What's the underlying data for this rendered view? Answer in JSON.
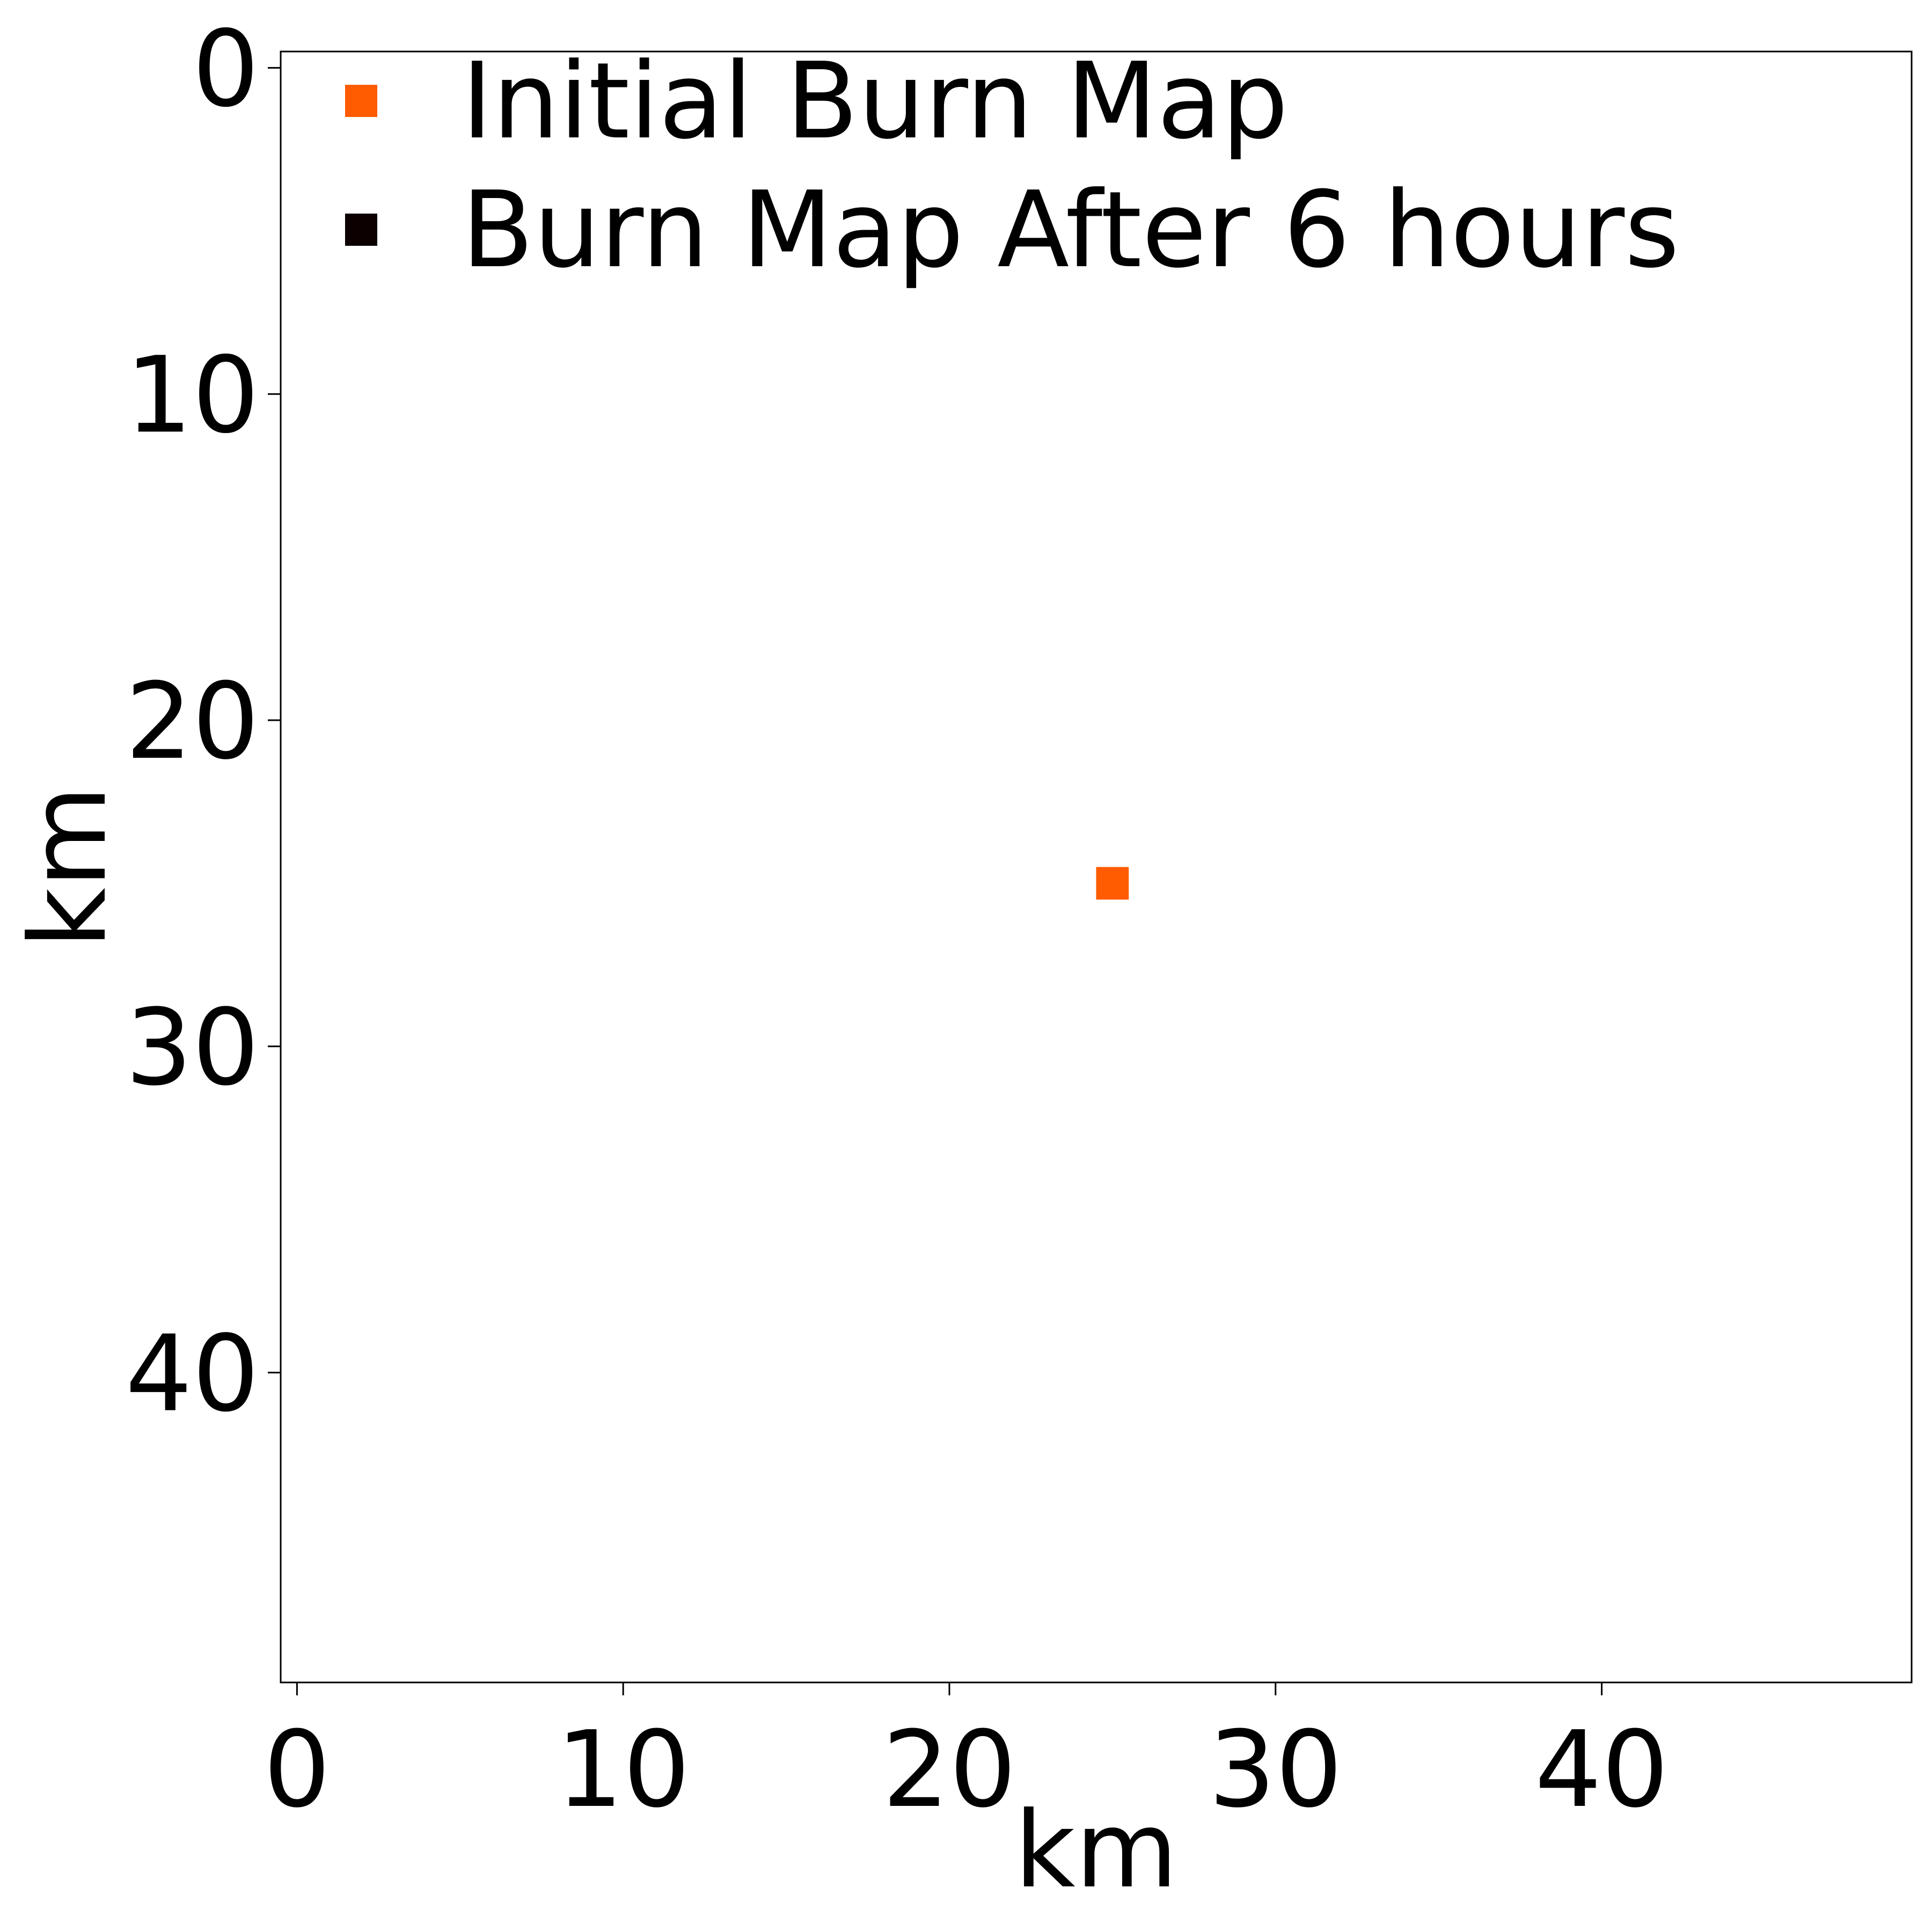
{
  "chart_data": {
    "type": "heatmap",
    "title": "",
    "xlabel": "km",
    "ylabel": "km",
    "xlim": [
      -0.5,
      49.5
    ],
    "ylim": [
      49.5,
      -0.5
    ],
    "y_inverted": true,
    "grid": false,
    "x_ticks": [
      0,
      10,
      20,
      30,
      40
    ],
    "y_ticks": [
      0,
      10,
      20,
      30,
      40
    ],
    "legend": {
      "placement": "top-left",
      "entries": [
        {
          "label": "Initial Burn Map",
          "color": "#ff5b00"
        },
        {
          "label": "Burn Map After 6 hours",
          "color": "#0c0000"
        }
      ]
    },
    "series": [
      {
        "name": "Initial Burn Map",
        "color": "#ff5b00",
        "cells": [
          [
            25,
            25
          ]
        ]
      },
      {
        "name": "Burn Map After 6 hours",
        "color": "#0c0000",
        "cells": []
      }
    ]
  }
}
